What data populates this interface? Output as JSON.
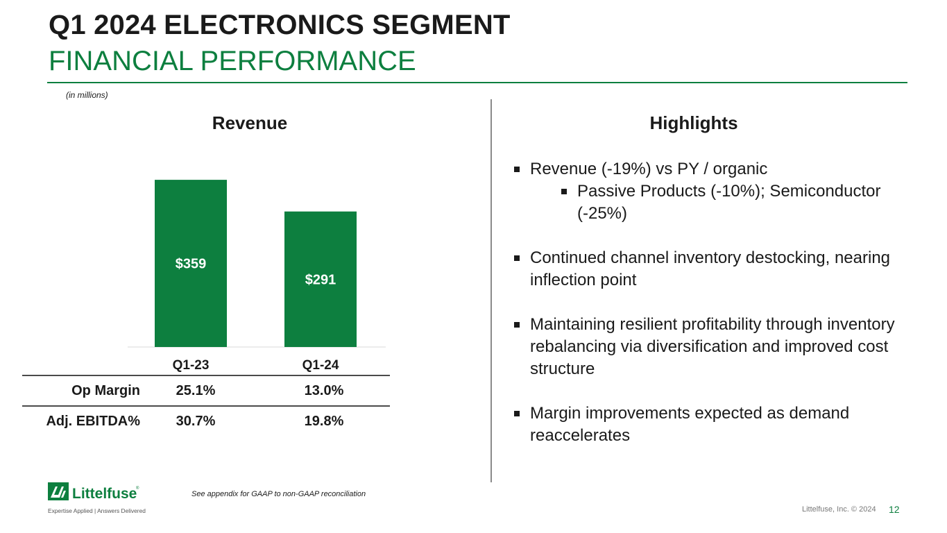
{
  "header": {
    "title": "Q1 2024 ELECTRONICS SEGMENT",
    "subtitle": "FINANCIAL PERFORMANCE",
    "units_note": "(in millions)"
  },
  "chart_title": "Revenue",
  "chart_data": {
    "type": "bar",
    "title": "Revenue",
    "categories": [
      "Q1-23",
      "Q1-24"
    ],
    "values": [
      359,
      291
    ],
    "value_labels": [
      "$359",
      "$291"
    ],
    "bar_color": "#0d7f3f",
    "label_color": "#ffffff",
    "ylim": [
      0,
      380
    ],
    "grid": false,
    "legend": "none"
  },
  "metrics": {
    "rows": [
      {
        "label": "Op Margin",
        "values": [
          "25.1%",
          "13.0%"
        ]
      },
      {
        "label": "Adj. EBITDA%",
        "values": [
          "30.7%",
          "19.8%"
        ]
      }
    ]
  },
  "highlights": {
    "title": "Highlights",
    "b1": "Revenue (-19%) vs PY / organic",
    "b1_sub": "Passive Products (-10%); Semiconductor (-25%)",
    "b2": "Continued channel inventory destocking, nearing inflection point",
    "b3": "Maintaining resilient profitability through inventory rebalancing via diversification and improved cost structure",
    "b4": "Margin improvements expected as demand reaccelerates"
  },
  "footer": {
    "logo_text": "Littelfuse",
    "logo_tagline": "Expertise Applied | Answers Delivered",
    "footnote": "See appendix for GAAP to non-GAAP reconciliation",
    "copyright": "Littelfuse, Inc. © 2024",
    "page_number": "12"
  },
  "colors": {
    "brand_green": "#0d7f3f",
    "text": "#1a1a1a"
  }
}
